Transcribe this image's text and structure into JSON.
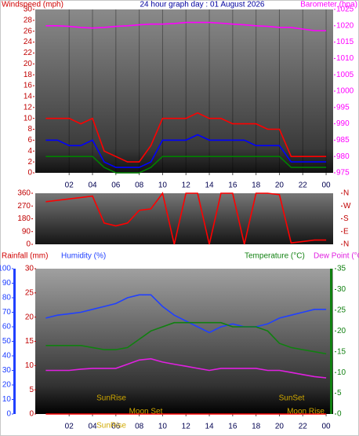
{
  "chart_data": [
    {
      "type": "line",
      "title": "24 hour graph day : 01 August 2026",
      "ylabel": "Windspeed (mph)",
      "y2label": "Barometer (hpa)",
      "x": [
        0,
        1,
        2,
        3,
        4,
        5,
        6,
        7,
        8,
        9,
        10,
        11,
        12,
        13,
        14,
        15,
        16,
        17,
        18,
        19,
        20,
        21,
        22,
        23,
        24
      ],
      "xlim": [
        -0.9,
        24.6
      ],
      "xticks": [
        {
          "value": 2,
          "label": "02"
        },
        {
          "value": 4,
          "label": "04"
        },
        {
          "value": 6,
          "label": "06"
        },
        {
          "value": 8,
          "label": "08"
        },
        10,
        12,
        14,
        16,
        18,
        20,
        22,
        {
          "value": 24,
          "label": "00"
        }
      ],
      "ylim": [
        0,
        30
      ],
      "yticks": [
        0,
        2,
        4,
        6,
        8,
        10,
        12,
        14,
        16,
        18,
        20,
        22,
        24,
        26,
        28,
        30
      ],
      "y2lim": [
        975,
        1025
      ],
      "y2ticks": [
        975,
        980,
        985,
        990,
        995,
        1000,
        1005,
        1010,
        1015,
        1020,
        1025
      ],
      "grid": true,
      "series": [
        {
          "color": "#ff0000",
          "values": [
            10,
            10,
            10,
            9,
            10,
            4,
            3,
            2,
            2,
            5,
            10,
            10,
            10,
            11,
            10,
            10,
            9,
            9,
            9,
            8,
            8,
            3,
            3,
            3,
            3
          ]
        },
        {
          "color": "#0000ff",
          "values": [
            6,
            6,
            5,
            5,
            6,
            2,
            1,
            1,
            1,
            2,
            6,
            6,
            6,
            7,
            6,
            6,
            6,
            6,
            5,
            5,
            5,
            2,
            2,
            2,
            2
          ]
        },
        {
          "color": "#008000",
          "values": [
            3,
            3,
            3,
            3,
            3,
            1,
            0,
            0,
            0,
            1,
            3,
            3,
            3,
            3,
            3,
            3,
            3,
            3,
            3,
            3,
            3,
            1,
            1,
            1,
            1
          ]
        },
        {
          "color": "#ff00ff",
          "axis": "y2",
          "values": [
            1020,
            1020,
            1019.8,
            1019.5,
            1019.3,
            1019.5,
            1019.8,
            1020,
            1020.3,
            1020.5,
            1020.5,
            1020.7,
            1021,
            1021,
            1021,
            1020.8,
            1020.5,
            1020.3,
            1020,
            1019.8,
            1019.5,
            1019.5,
            1019,
            1018.5,
            1018.5
          ]
        }
      ]
    },
    {
      "type": "line",
      "x": [
        0,
        1,
        2,
        3,
        4,
        5,
        6,
        7,
        8,
        9,
        10,
        11,
        12,
        13,
        14,
        15,
        16,
        17,
        18,
        19,
        20,
        21,
        22,
        23,
        24
      ],
      "xlim": [
        -0.9,
        24.6
      ],
      "ylim": [
        0,
        360
      ],
      "yticks": [
        0,
        90,
        180,
        270,
        360
      ],
      "y2lim": [
        0,
        360
      ],
      "y2ticks": [
        {
          "value": 0,
          "label": "N"
        },
        {
          "value": 90,
          "label": "E"
        },
        {
          "value": 180,
          "label": "S"
        },
        {
          "value": 270,
          "label": "W"
        },
        {
          "value": 360,
          "label": "N"
        }
      ],
      "series": [
        {
          "color": "#ff0000",
          "values": [
            300,
            310,
            320,
            330,
            340,
            150,
            130,
            150,
            240,
            250,
            360,
            0,
            360,
            360,
            0,
            360,
            360,
            0,
            360,
            360,
            350,
            10,
            20,
            30,
            30
          ]
        }
      ]
    },
    {
      "type": "line",
      "ylabel": "Humidity (%)",
      "y3label": "Rainfall (mm)",
      "y2label": "Temperature (°C)",
      "y2label_b": "Dew Point (°C",
      "x": [
        0,
        1,
        2,
        3,
        4,
        5,
        6,
        7,
        8,
        9,
        10,
        11,
        12,
        13,
        14,
        15,
        16,
        17,
        18,
        19,
        20,
        21,
        22,
        23,
        24
      ],
      "xlim": [
        -0.9,
        24.6
      ],
      "xticks": [
        {
          "value": 2,
          "label": "02"
        },
        {
          "value": 4,
          "label": "04"
        },
        {
          "value": 6,
          "label": "06"
        },
        {
          "value": 8,
          "label": "08"
        },
        10,
        12,
        14,
        16,
        18,
        20,
        22,
        {
          "value": 24,
          "label": "00"
        }
      ],
      "ylim": [
        0,
        100
      ],
      "yticks": [
        0,
        10,
        20,
        30,
        40,
        50,
        60,
        70,
        80,
        90,
        100
      ],
      "y3lim": [
        0,
        30
      ],
      "y3ticks": [
        0,
        5,
        10,
        15,
        20,
        25,
        30
      ],
      "y2lim": [
        0,
        35
      ],
      "y2ticks": [
        0,
        5,
        10,
        15,
        20,
        25,
        30,
        35
      ],
      "annotations": [
        "SunRise",
        "SunSet",
        "Moon Set",
        "Moon Rise",
        "SunRise"
      ],
      "series": [
        {
          "color": "#2040ff",
          "values": [
            66,
            68,
            69,
            70,
            72,
            74,
            76,
            80,
            82,
            82,
            74,
            68,
            64,
            60,
            56,
            60,
            62,
            60,
            60,
            62,
            66,
            68,
            70,
            72,
            72
          ]
        },
        {
          "color": "#108010",
          "axis": "y2",
          "values": [
            16.5,
            16.5,
            16.5,
            16.5,
            16,
            15.5,
            15.5,
            16,
            18,
            20,
            21,
            22,
            22,
            22,
            22,
            22,
            21,
            21,
            21,
            20,
            17,
            16,
            15.5,
            15,
            14.5
          ]
        },
        {
          "color": "#e020e0",
          "axis": "y2",
          "values": [
            10.5,
            10.5,
            10.5,
            10.8,
            11,
            11,
            11,
            12,
            13,
            13.3,
            12.5,
            12,
            11.5,
            11,
            10.5,
            11,
            11,
            11,
            11,
            10.5,
            10.5,
            10,
            9.5,
            9,
            8.7
          ]
        },
        {
          "color": "#ff0000",
          "axis": "y3",
          "values": [
            0,
            0,
            0,
            0,
            0,
            0,
            0,
            0,
            0,
            0,
            0,
            0,
            0,
            0,
            0,
            0,
            0,
            0,
            0,
            0,
            0,
            0,
            0,
            0,
            0
          ]
        }
      ]
    }
  ]
}
